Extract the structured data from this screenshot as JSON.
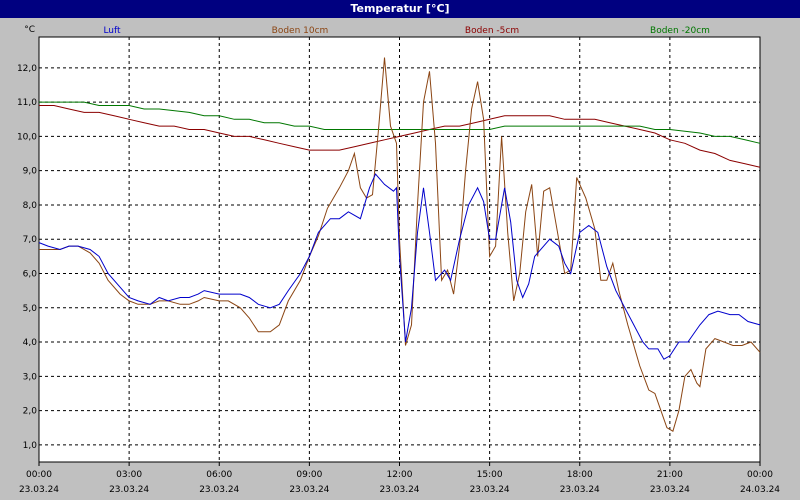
{
  "window": {
    "title": "Temperatur [°C]"
  },
  "chart_data": {
    "type": "line",
    "title": "Temperatur [°C]",
    "ylabel": "°C",
    "ylim": [
      0.5,
      12.9
    ],
    "yticks": [
      "1,0",
      "2,0",
      "3,0",
      "4,0",
      "5,0",
      "6,0",
      "7,0",
      "8,0",
      "9,0",
      "10,0",
      "11,0",
      "12,0"
    ],
    "ytick_values": [
      1,
      2,
      3,
      4,
      5,
      6,
      7,
      8,
      9,
      10,
      11,
      12
    ],
    "xlim": [
      0,
      24
    ],
    "xticks": [
      {
        "time": "00:00",
        "date": "23.03.24"
      },
      {
        "time": "03:00",
        "date": "23.03.24"
      },
      {
        "time": "06:00",
        "date": "23.03.24"
      },
      {
        "time": "09:00",
        "date": "23.03.24"
      },
      {
        "time": "12:00",
        "date": "23.03.24"
      },
      {
        "time": "15:00",
        "date": "23.03.24"
      },
      {
        "time": "18:00",
        "date": "23.03.24"
      },
      {
        "time": "21:00",
        "date": "23.03.24"
      },
      {
        "time": "00:00",
        "date": "24.03.24"
      }
    ],
    "grid": true,
    "legend_position": "top",
    "series": [
      {
        "name": "Luft",
        "color": "#0000cc",
        "points": [
          [
            0,
            6.9
          ],
          [
            0.3,
            6.8
          ],
          [
            0.7,
            6.7
          ],
          [
            1,
            6.8
          ],
          [
            1.3,
            6.8
          ],
          [
            1.7,
            6.7
          ],
          [
            2,
            6.5
          ],
          [
            2.3,
            6.0
          ],
          [
            2.7,
            5.6
          ],
          [
            3,
            5.3
          ],
          [
            3.3,
            5.2
          ],
          [
            3.7,
            5.1
          ],
          [
            4,
            5.3
          ],
          [
            4.3,
            5.2
          ],
          [
            4.7,
            5.3
          ],
          [
            5,
            5.3
          ],
          [
            5.3,
            5.4
          ],
          [
            5.5,
            5.5
          ],
          [
            6,
            5.4
          ],
          [
            6.3,
            5.4
          ],
          [
            6.7,
            5.4
          ],
          [
            7,
            5.3
          ],
          [
            7.3,
            5.1
          ],
          [
            7.7,
            5.0
          ],
          [
            8,
            5.1
          ],
          [
            8.3,
            5.5
          ],
          [
            8.7,
            6.0
          ],
          [
            9,
            6.5
          ],
          [
            9.3,
            7.2
          ],
          [
            9.7,
            7.6
          ],
          [
            10,
            7.6
          ],
          [
            10.3,
            7.8
          ],
          [
            10.7,
            7.6
          ],
          [
            11,
            8.5
          ],
          [
            11.2,
            8.9
          ],
          [
            11.5,
            8.6
          ],
          [
            11.8,
            8.4
          ],
          [
            11.9,
            8.5
          ],
          [
            12,
            6.5
          ],
          [
            12.2,
            4.0
          ],
          [
            12.4,
            5.0
          ],
          [
            12.6,
            7.2
          ],
          [
            12.8,
            8.5
          ],
          [
            13,
            7.2
          ],
          [
            13.2,
            5.8
          ],
          [
            13.5,
            6.1
          ],
          [
            13.7,
            5.8
          ],
          [
            14,
            7.0
          ],
          [
            14.3,
            8.0
          ],
          [
            14.6,
            8.5
          ],
          [
            14.8,
            8.1
          ],
          [
            15,
            7.0
          ],
          [
            15.2,
            7.0
          ],
          [
            15.4,
            8.0
          ],
          [
            15.5,
            8.5
          ],
          [
            15.7,
            7.5
          ],
          [
            15.9,
            5.8
          ],
          [
            16.1,
            5.3
          ],
          [
            16.3,
            5.7
          ],
          [
            16.5,
            6.5
          ],
          [
            16.8,
            6.8
          ],
          [
            17,
            7.0
          ],
          [
            17.3,
            6.8
          ],
          [
            17.5,
            6.3
          ],
          [
            17.7,
            6.0
          ],
          [
            18,
            7.2
          ],
          [
            18.3,
            7.4
          ],
          [
            18.6,
            7.2
          ],
          [
            18.9,
            6.2
          ],
          [
            19.2,
            5.5
          ],
          [
            19.5,
            5.0
          ],
          [
            19.8,
            4.5
          ],
          [
            20.1,
            4.0
          ],
          [
            20.3,
            3.8
          ],
          [
            20.6,
            3.8
          ],
          [
            20.8,
            3.5
          ],
          [
            21,
            3.6
          ],
          [
            21.3,
            4.0
          ],
          [
            21.6,
            4.0
          ],
          [
            22,
            4.5
          ],
          [
            22.3,
            4.8
          ],
          [
            22.6,
            4.9
          ],
          [
            23,
            4.8
          ],
          [
            23.3,
            4.8
          ],
          [
            23.6,
            4.6
          ],
          [
            24,
            4.5
          ]
        ]
      },
      {
        "name": "Boden 10cm",
        "color": "#8b4513",
        "points": [
          [
            0,
            6.7
          ],
          [
            0.3,
            6.7
          ],
          [
            0.7,
            6.7
          ],
          [
            1,
            6.8
          ],
          [
            1.3,
            6.8
          ],
          [
            1.7,
            6.6
          ],
          [
            2,
            6.3
          ],
          [
            2.3,
            5.8
          ],
          [
            2.7,
            5.4
          ],
          [
            3,
            5.2
          ],
          [
            3.3,
            5.1
          ],
          [
            3.7,
            5.1
          ],
          [
            4,
            5.2
          ],
          [
            4.3,
            5.2
          ],
          [
            4.7,
            5.1
          ],
          [
            5,
            5.1
          ],
          [
            5.3,
            5.2
          ],
          [
            5.5,
            5.3
          ],
          [
            6,
            5.2
          ],
          [
            6.3,
            5.2
          ],
          [
            6.7,
            5.0
          ],
          [
            7,
            4.7
          ],
          [
            7.3,
            4.3
          ],
          [
            7.7,
            4.3
          ],
          [
            8,
            4.5
          ],
          [
            8.3,
            5.2
          ],
          [
            8.7,
            5.8
          ],
          [
            9,
            6.5
          ],
          [
            9.3,
            7.1
          ],
          [
            9.6,
            7.9
          ],
          [
            10,
            8.5
          ],
          [
            10.3,
            9.0
          ],
          [
            10.5,
            9.5
          ],
          [
            10.7,
            8.5
          ],
          [
            10.9,
            8.2
          ],
          [
            11.1,
            8.3
          ],
          [
            11.3,
            10.2
          ],
          [
            11.5,
            12.3
          ],
          [
            11.7,
            10.3
          ],
          [
            11.9,
            9.8
          ],
          [
            12,
            7.0
          ],
          [
            12.2,
            3.9
          ],
          [
            12.4,
            4.5
          ],
          [
            12.6,
            8.0
          ],
          [
            12.8,
            11.0
          ],
          [
            13,
            11.9
          ],
          [
            13.2,
            9.8
          ],
          [
            13.4,
            5.8
          ],
          [
            13.6,
            6.1
          ],
          [
            13.8,
            5.4
          ],
          [
            14,
            6.8
          ],
          [
            14.2,
            9.0
          ],
          [
            14.4,
            10.8
          ],
          [
            14.6,
            11.6
          ],
          [
            14.8,
            10.5
          ],
          [
            15,
            6.5
          ],
          [
            15.2,
            6.8
          ],
          [
            15.4,
            10.0
          ],
          [
            15.6,
            7.2
          ],
          [
            15.8,
            5.2
          ],
          [
            16,
            6.0
          ],
          [
            16.2,
            7.8
          ],
          [
            16.4,
            8.6
          ],
          [
            16.6,
            6.5
          ],
          [
            16.8,
            8.4
          ],
          [
            17,
            8.5
          ],
          [
            17.3,
            7.0
          ],
          [
            17.5,
            6.0
          ],
          [
            17.7,
            6.1
          ],
          [
            17.9,
            8.8
          ],
          [
            18.2,
            8.2
          ],
          [
            18.5,
            7.3
          ],
          [
            18.7,
            5.8
          ],
          [
            18.9,
            5.8
          ],
          [
            19.1,
            6.3
          ],
          [
            19.3,
            5.5
          ],
          [
            19.6,
            4.5
          ],
          [
            20,
            3.3
          ],
          [
            20.3,
            2.6
          ],
          [
            20.5,
            2.5
          ],
          [
            20.7,
            2.0
          ],
          [
            20.9,
            1.5
          ],
          [
            21.1,
            1.4
          ],
          [
            21.3,
            2.0
          ],
          [
            21.5,
            3.0
          ],
          [
            21.7,
            3.2
          ],
          [
            21.9,
            2.8
          ],
          [
            22,
            2.7
          ],
          [
            22.2,
            3.8
          ],
          [
            22.5,
            4.1
          ],
          [
            22.8,
            4.0
          ],
          [
            23.1,
            3.9
          ],
          [
            23.4,
            3.9
          ],
          [
            23.7,
            4.0
          ],
          [
            24,
            3.7
          ]
        ]
      },
      {
        "name": "Boden -5cm",
        "color": "#8b0000",
        "points": [
          [
            0,
            10.9
          ],
          [
            0.5,
            10.9
          ],
          [
            1,
            10.8
          ],
          [
            1.5,
            10.7
          ],
          [
            2,
            10.7
          ],
          [
            2.5,
            10.6
          ],
          [
            3,
            10.5
          ],
          [
            3.5,
            10.4
          ],
          [
            4,
            10.3
          ],
          [
            4.5,
            10.3
          ],
          [
            5,
            10.2
          ],
          [
            5.5,
            10.2
          ],
          [
            6,
            10.1
          ],
          [
            6.5,
            10.0
          ],
          [
            7,
            10.0
          ],
          [
            7.5,
            9.9
          ],
          [
            8,
            9.8
          ],
          [
            8.5,
            9.7
          ],
          [
            9,
            9.6
          ],
          [
            9.5,
            9.6
          ],
          [
            10,
            9.6
          ],
          [
            10.5,
            9.7
          ],
          [
            11,
            9.8
          ],
          [
            11.5,
            9.9
          ],
          [
            12,
            10.0
          ],
          [
            12.5,
            10.1
          ],
          [
            13,
            10.2
          ],
          [
            13.5,
            10.3
          ],
          [
            14,
            10.3
          ],
          [
            14.5,
            10.4
          ],
          [
            15,
            10.5
          ],
          [
            15.5,
            10.6
          ],
          [
            16,
            10.6
          ],
          [
            16.5,
            10.6
          ],
          [
            17,
            10.6
          ],
          [
            17.5,
            10.5
          ],
          [
            18,
            10.5
          ],
          [
            18.5,
            10.5
          ],
          [
            19,
            10.4
          ],
          [
            19.5,
            10.3
          ],
          [
            20,
            10.2
          ],
          [
            20.5,
            10.1
          ],
          [
            21,
            9.9
          ],
          [
            21.5,
            9.8
          ],
          [
            22,
            9.6
          ],
          [
            22.5,
            9.5
          ],
          [
            23,
            9.3
          ],
          [
            23.5,
            9.2
          ],
          [
            24,
            9.1
          ]
        ]
      },
      {
        "name": "Boden -20cm",
        "color": "#007700",
        "points": [
          [
            0,
            11.0
          ],
          [
            1,
            11.0
          ],
          [
            1.5,
            11.0
          ],
          [
            2,
            10.9
          ],
          [
            3,
            10.9
          ],
          [
            3.5,
            10.8
          ],
          [
            4,
            10.8
          ],
          [
            5,
            10.7
          ],
          [
            5.5,
            10.6
          ],
          [
            6,
            10.6
          ],
          [
            6.5,
            10.5
          ],
          [
            7,
            10.5
          ],
          [
            7.5,
            10.4
          ],
          [
            8,
            10.4
          ],
          [
            8.5,
            10.3
          ],
          [
            9,
            10.3
          ],
          [
            9.5,
            10.2
          ],
          [
            10,
            10.2
          ],
          [
            11,
            10.2
          ],
          [
            12,
            10.2
          ],
          [
            13,
            10.2
          ],
          [
            14,
            10.2
          ],
          [
            15,
            10.2
          ],
          [
            15.5,
            10.3
          ],
          [
            16,
            10.3
          ],
          [
            17,
            10.3
          ],
          [
            18,
            10.3
          ],
          [
            19,
            10.3
          ],
          [
            20,
            10.3
          ],
          [
            20.5,
            10.2
          ],
          [
            21,
            10.2
          ],
          [
            22,
            10.1
          ],
          [
            22.5,
            10.0
          ],
          [
            23,
            10.0
          ],
          [
            23.5,
            9.9
          ],
          [
            24,
            9.8
          ]
        ]
      }
    ]
  }
}
